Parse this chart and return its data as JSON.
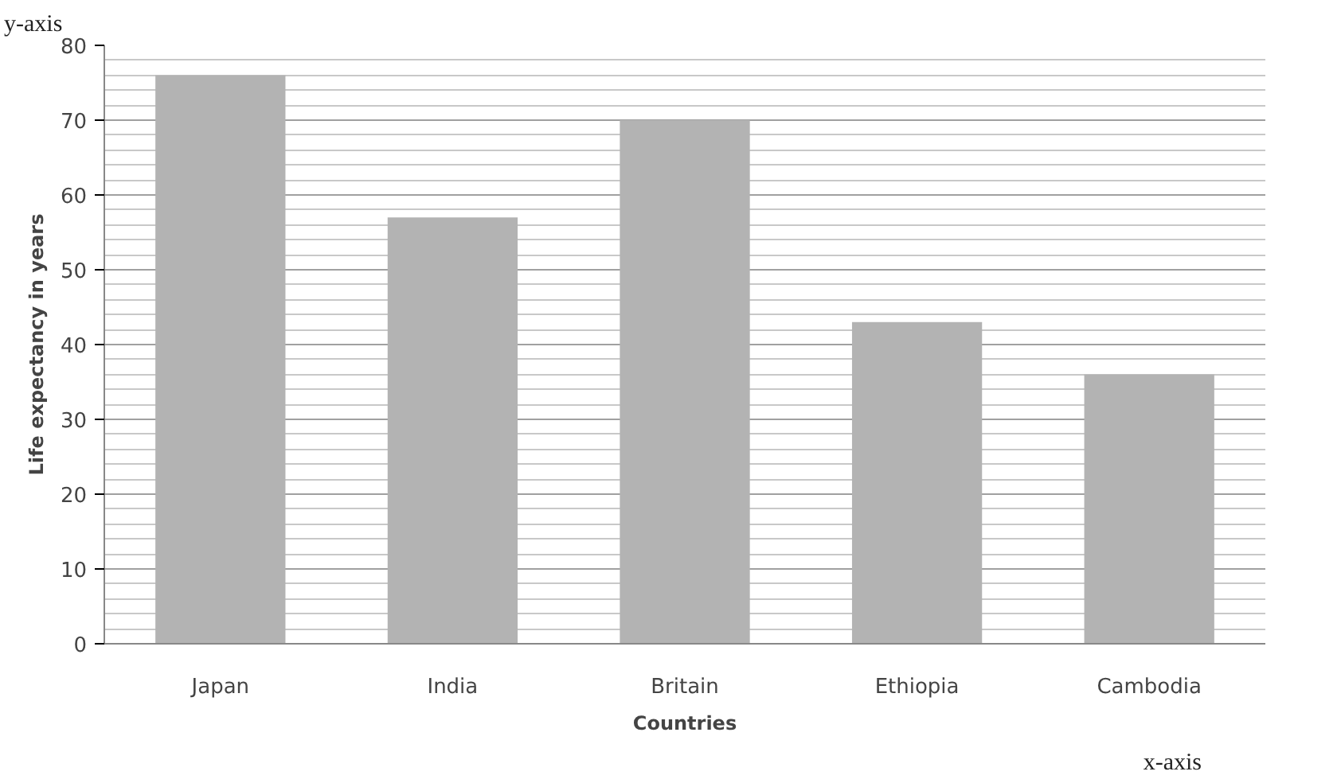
{
  "chart_data": {
    "type": "bar",
    "xlabel": "Countries",
    "ylabel": "Life expectancy in years",
    "categories": [
      "Japan",
      "India",
      "Britain",
      "Ethiopia",
      "Cambodia"
    ],
    "values": [
      76,
      57,
      70,
      43,
      36
    ],
    "color": "#b3b3b3",
    "ylim": [
      0,
      80
    ],
    "yticks": [
      0,
      10,
      20,
      30,
      40,
      50,
      60,
      70,
      80
    ],
    "grid": "y",
    "annotations": [
      "y-axis",
      "x-axis"
    ]
  }
}
